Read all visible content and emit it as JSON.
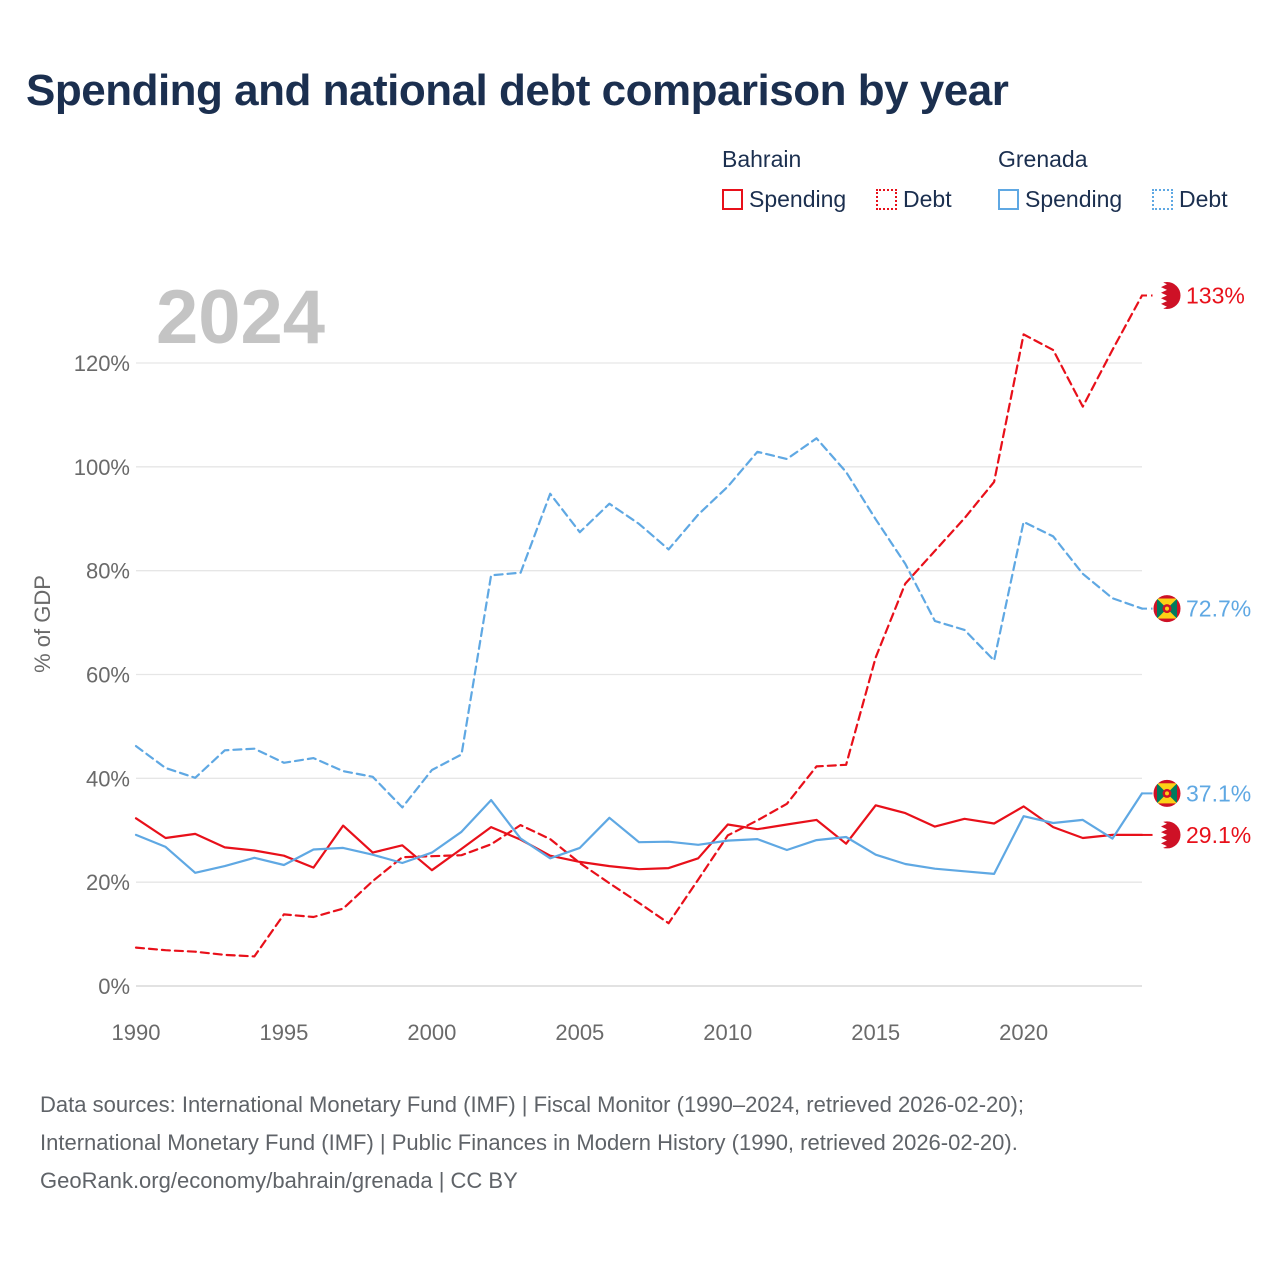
{
  "title": "Spending and national debt comparison by year",
  "legend": {
    "groups": [
      {
        "name": "Bahrain",
        "color": "#e8101a",
        "items": [
          {
            "label": "Spending",
            "style": "solid"
          },
          {
            "label": "Debt",
            "style": "dotted"
          }
        ]
      },
      {
        "name": "Grenada",
        "color": "#5fa8e3",
        "items": [
          {
            "label": "Spending",
            "style": "solid"
          },
          {
            "label": "Debt",
            "style": "dotted"
          }
        ]
      }
    ]
  },
  "chart_data": {
    "type": "line",
    "title": "Spending and national debt comparison by year",
    "year_label": "2024",
    "ylabel": "% of GDP",
    "xlabel": "",
    "xlim": [
      1990,
      2024
    ],
    "ylim": [
      0,
      135
    ],
    "x_ticks": [
      1990,
      1995,
      2000,
      2005,
      2010,
      2015,
      2020
    ],
    "y_ticks": [
      {
        "value": 0,
        "label": "0%"
      },
      {
        "value": 20,
        "label": "20%"
      },
      {
        "value": 40,
        "label": "40%"
      },
      {
        "value": 60,
        "label": "60%"
      },
      {
        "value": 80,
        "label": "80%"
      },
      {
        "value": 100,
        "label": "100%"
      },
      {
        "value": 120,
        "label": "120%"
      }
    ],
    "x": [
      1990,
      1991,
      1992,
      1993,
      1994,
      1995,
      1996,
      1997,
      1998,
      1999,
      2000,
      2001,
      2002,
      2003,
      2004,
      2005,
      2006,
      2007,
      2008,
      2009,
      2010,
      2011,
      2012,
      2013,
      2014,
      2015,
      2016,
      2017,
      2018,
      2019,
      2020,
      2021,
      2022,
      2023,
      2024
    ],
    "series": [
      {
        "name": "Bahrain Spending",
        "country": "Bahrain",
        "metric": "Spending",
        "color": "#e8101a",
        "dashed": false,
        "end_label": "29.1%",
        "flag": "bahrain",
        "values": [
          32.3,
          28.5,
          29.3,
          26.7,
          26.1,
          25.1,
          22.8,
          30.9,
          25.7,
          27.1,
          22.3,
          26.4,
          30.6,
          28.2,
          25.1,
          23.9,
          23.1,
          22.5,
          22.7,
          24.6,
          31.1,
          30.2,
          31.1,
          32.0,
          27.4,
          34.8,
          33.3,
          30.7,
          32.2,
          31.3,
          34.6,
          30.6,
          28.5,
          29.1,
          29.1
        ]
      },
      {
        "name": "Bahrain Debt",
        "country": "Bahrain",
        "metric": "Debt",
        "color": "#e8101a",
        "dashed": true,
        "end_label": "133%",
        "flag": "bahrain",
        "values": [
          7.4,
          6.9,
          6.6,
          6.0,
          5.7,
          13.8,
          13.3,
          14.9,
          20.2,
          24.8,
          25.0,
          25.2,
          27.3,
          31.0,
          28.3,
          23.7,
          19.8,
          16.0,
          12.1,
          20.5,
          29.0,
          31.9,
          35.1,
          42.3,
          42.6,
          63.3,
          77.5,
          83.8,
          90.1,
          97.1,
          125.5,
          122.5,
          111.6,
          122.5,
          133.0
        ]
      },
      {
        "name": "Grenada Spending",
        "country": "Grenada",
        "metric": "Spending",
        "color": "#5fa8e3",
        "dashed": false,
        "end_label": "37.1%",
        "flag": "grenada",
        "values": [
          29.1,
          26.8,
          21.8,
          23.1,
          24.7,
          23.3,
          26.3,
          26.6,
          25.3,
          23.7,
          25.7,
          29.7,
          35.8,
          28.4,
          24.6,
          26.6,
          32.4,
          27.7,
          27.8,
          27.2,
          28.0,
          28.3,
          26.2,
          28.1,
          28.7,
          25.3,
          23.5,
          22.6,
          22.1,
          21.6,
          32.7,
          31.4,
          32.0,
          28.4,
          37.1
        ]
      },
      {
        "name": "Grenada Debt",
        "country": "Grenada",
        "metric": "Debt",
        "color": "#5fa8e3",
        "dashed": true,
        "end_label": "72.7%",
        "flag": "grenada",
        "values": [
          46.2,
          42.0,
          40.1,
          45.4,
          45.7,
          43.0,
          43.9,
          41.4,
          40.3,
          34.4,
          41.6,
          44.6,
          79.1,
          79.6,
          94.8,
          87.4,
          92.9,
          89.0,
          84.1,
          90.8,
          96.2,
          102.9,
          101.5,
          105.5,
          99.0,
          89.9,
          81.3,
          70.3,
          68.6,
          62.7,
          89.4,
          86.6,
          79.4,
          74.7,
          72.7
        ]
      }
    ]
  },
  "source": {
    "line1": "Data sources: International Monetary Fund (IMF) | Fiscal Monitor (1990–2024, retrieved 2026-02-20);",
    "line2": "International Monetary Fund (IMF) | Public Finances in Modern History (1990, retrieved 2026-02-20).",
    "line3": "GeoRank.org/economy/bahrain/grenada | CC BY"
  }
}
